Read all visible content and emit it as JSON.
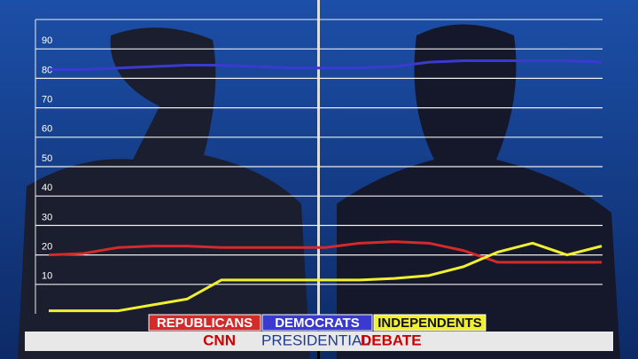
{
  "chart_data": {
    "type": "line",
    "categories": [
      null,
      null,
      null,
      null,
      null,
      null,
      null,
      null,
      null,
      null,
      null,
      null,
      null,
      null,
      null,
      null,
      null
    ],
    "series": [
      {
        "name": "REPUBLICANS",
        "color": "#d42a2a",
        "values": [
          20,
          20.5,
          22.5,
          23,
          23,
          22.5,
          22.5,
          22.5,
          22.5,
          24,
          24.5,
          24,
          21.5,
          17.5,
          17.5,
          17.5,
          17.5
        ]
      },
      {
        "name": "DEMOCRATS",
        "color": "#3a3ad0",
        "values": [
          83,
          83,
          83.5,
          84,
          84.5,
          84.5,
          84,
          83.5,
          83.5,
          83.5,
          84,
          85.5,
          86,
          86,
          86,
          86,
          85.5
        ]
      },
      {
        "name": "INDEPENDENTS",
        "color": "#f0f030",
        "values": [
          1,
          1,
          1,
          3,
          5,
          11.5,
          11.5,
          11.5,
          11.5,
          11.5,
          12,
          13,
          16,
          21,
          24,
          20,
          23
        ]
      }
    ],
    "ylim": [
      0,
      100
    ],
    "yticks": [
      10,
      20,
      30,
      40,
      50,
      60,
      70,
      80,
      90
    ],
    "grid": true
  },
  "banner": {
    "logo": "CNN",
    "first": "PRESIDENTIAL",
    "second": "DEBATE"
  }
}
